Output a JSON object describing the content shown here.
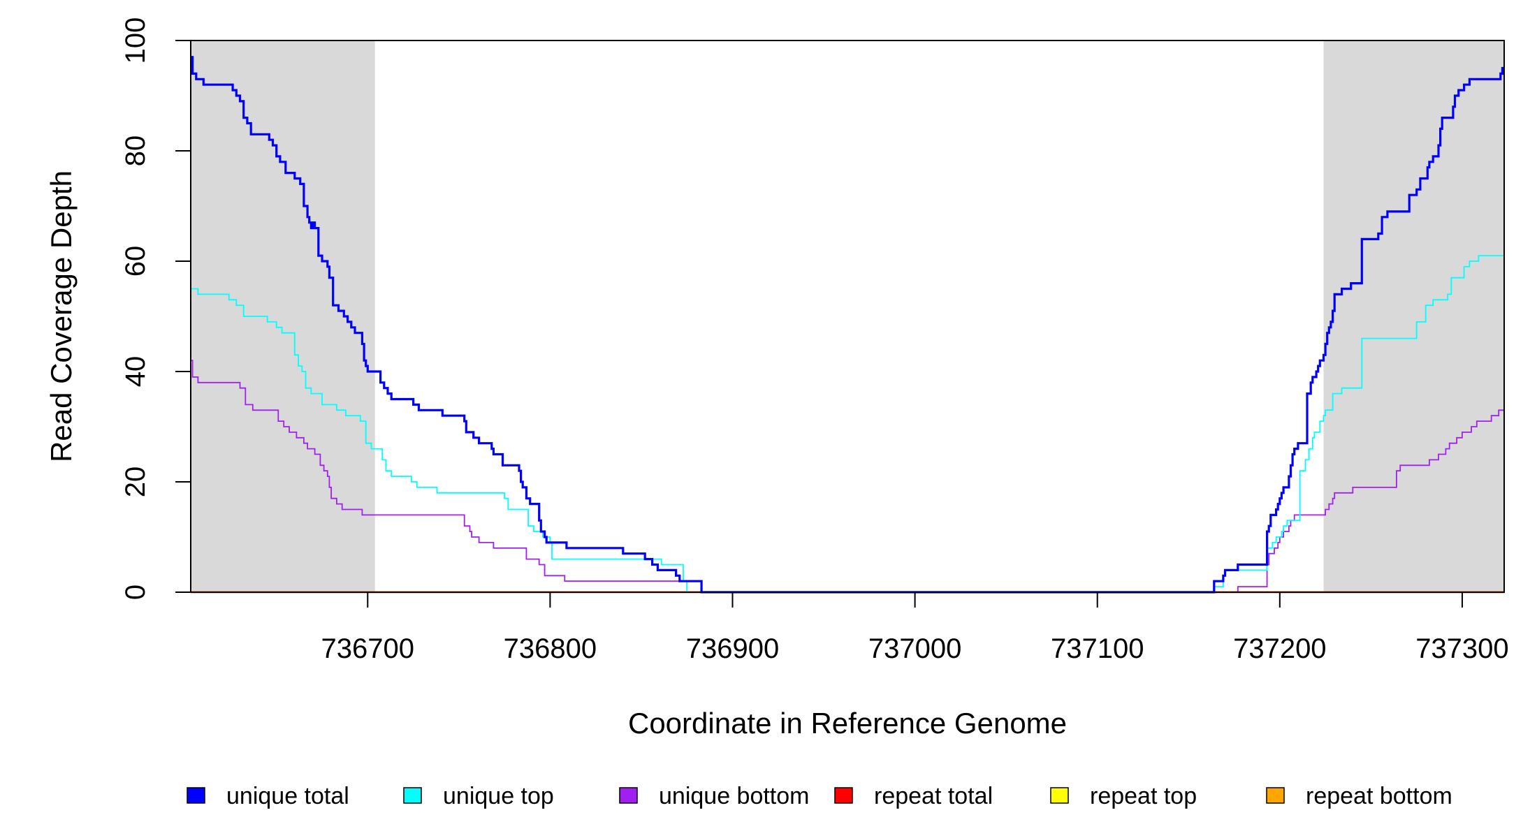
{
  "chart_data": {
    "type": "line",
    "xlabel": "Coordinate in Reference Genome",
    "ylabel": "Read Coverage Depth",
    "xlim": [
      736603,
      737323
    ],
    "ylim": [
      0,
      100
    ],
    "x_ticks": [
      736700,
      736800,
      736900,
      737000,
      737100,
      737200,
      737300
    ],
    "y_ticks": [
      0,
      20,
      40,
      60,
      80,
      100
    ],
    "grid": false,
    "legend_position": "bottom",
    "shaded_regions": [
      {
        "from": 736603,
        "to": 736704,
        "color": "#d9d9d9"
      },
      {
        "from": 737224,
        "to": 737323,
        "color": "#d9d9d9"
      }
    ],
    "series": [
      {
        "name": "unique total",
        "color": "#0000ff",
        "points": [
          [
            736603,
            97
          ],
          [
            736604,
            94
          ],
          [
            736606,
            93
          ],
          [
            736610,
            92
          ],
          [
            736626,
            91
          ],
          [
            736628,
            90
          ],
          [
            736630,
            89
          ],
          [
            736632,
            86
          ],
          [
            736634,
            85
          ],
          [
            736636,
            83
          ],
          [
            736646,
            82
          ],
          [
            736648,
            81
          ],
          [
            736650,
            79
          ],
          [
            736652,
            78
          ],
          [
            736655,
            76
          ],
          [
            736660,
            75
          ],
          [
            736663,
            74
          ],
          [
            736665,
            70
          ],
          [
            736667,
            68
          ],
          [
            736668,
            67
          ],
          [
            736669,
            66
          ],
          [
            736670,
            67
          ],
          [
            736671,
            66
          ],
          [
            736673,
            61
          ],
          [
            736675,
            60
          ],
          [
            736678,
            59
          ],
          [
            736679,
            57
          ],
          [
            736681,
            52
          ],
          [
            736684,
            51
          ],
          [
            736687,
            50
          ],
          [
            736689,
            49
          ],
          [
            736691,
            48
          ],
          [
            736693,
            47
          ],
          [
            736697,
            45
          ],
          [
            736698,
            42
          ],
          [
            736699,
            41
          ],
          [
            736700,
            40
          ],
          [
            736707,
            38
          ],
          [
            736709,
            37
          ],
          [
            736711,
            36
          ],
          [
            736713,
            35
          ],
          [
            736725,
            34
          ],
          [
            736728,
            33
          ],
          [
            736741,
            32
          ],
          [
            736753,
            31
          ],
          [
            736754,
            29
          ],
          [
            736758,
            28
          ],
          [
            736761,
            27
          ],
          [
            736768,
            26
          ],
          [
            736769,
            25
          ],
          [
            736774,
            23
          ],
          [
            736783,
            22
          ],
          [
            736784,
            20
          ],
          [
            736785,
            19
          ],
          [
            736787,
            17
          ],
          [
            736789,
            16
          ],
          [
            736794,
            13
          ],
          [
            736795,
            11
          ],
          [
            736797,
            10
          ],
          [
            736798,
            9
          ],
          [
            736809,
            8
          ],
          [
            736840,
            7
          ],
          [
            736852,
            6
          ],
          [
            736856,
            5
          ],
          [
            736859,
            4
          ],
          [
            736869,
            3
          ],
          [
            736871,
            2
          ],
          [
            736883,
            0
          ],
          [
            737163,
            0
          ],
          [
            737164,
            2
          ],
          [
            737169,
            3
          ],
          [
            737170,
            4
          ],
          [
            737177,
            5
          ],
          [
            737193,
            11
          ],
          [
            737194,
            12
          ],
          [
            737195,
            14
          ],
          [
            737198,
            15
          ],
          [
            737199,
            16
          ],
          [
            737200,
            17
          ],
          [
            737201,
            18
          ],
          [
            737202,
            19
          ],
          [
            737205,
            21
          ],
          [
            737206,
            23
          ],
          [
            737207,
            25
          ],
          [
            737208,
            26
          ],
          [
            737210,
            27
          ],
          [
            737215,
            36
          ],
          [
            737217,
            38
          ],
          [
            737218,
            39
          ],
          [
            737220,
            40
          ],
          [
            737221,
            41
          ],
          [
            737222,
            42
          ],
          [
            737224,
            43
          ],
          [
            737225,
            45
          ],
          [
            737226,
            47
          ],
          [
            737227,
            48
          ],
          [
            737228,
            49
          ],
          [
            737229,
            51
          ],
          [
            737230,
            54
          ],
          [
            737234,
            55
          ],
          [
            737239,
            56
          ],
          [
            737245,
            64
          ],
          [
            737254,
            65
          ],
          [
            737256,
            68
          ],
          [
            737259,
            69
          ],
          [
            737271,
            72
          ],
          [
            737275,
            73
          ],
          [
            737277,
            75
          ],
          [
            737281,
            77
          ],
          [
            737282,
            78
          ],
          [
            737284,
            79
          ],
          [
            737287,
            81
          ],
          [
            737288,
            84
          ],
          [
            737289,
            86
          ],
          [
            737295,
            88
          ],
          [
            737296,
            90
          ],
          [
            737298,
            91
          ],
          [
            737301,
            92
          ],
          [
            737304,
            93
          ],
          [
            737307,
            93
          ],
          [
            737308,
            93
          ],
          [
            737310,
            93
          ],
          [
            737311,
            93
          ],
          [
            737313,
            93
          ],
          [
            737315,
            93
          ],
          [
            737317,
            93
          ],
          [
            737319,
            93
          ],
          [
            737321,
            94
          ],
          [
            737322,
            95
          ],
          [
            737323,
            95
          ]
        ]
      },
      {
        "name": "unique top",
        "color": "#00ffff",
        "points": [
          [
            736603,
            55
          ],
          [
            736607,
            54
          ],
          [
            736624,
            53
          ],
          [
            736628,
            52
          ],
          [
            736632,
            50
          ],
          [
            736645,
            49
          ],
          [
            736650,
            48
          ],
          [
            736653,
            47
          ],
          [
            736660,
            43
          ],
          [
            736662,
            41
          ],
          [
            736664,
            40
          ],
          [
            736666,
            37
          ],
          [
            736669,
            36
          ],
          [
            736675,
            34
          ],
          [
            736683,
            33
          ],
          [
            736688,
            32
          ],
          [
            736696,
            31
          ],
          [
            736699,
            27
          ],
          [
            736702,
            26
          ],
          [
            736708,
            24
          ],
          [
            736710,
            22
          ],
          [
            736713,
            21
          ],
          [
            736724,
            20
          ],
          [
            736727,
            19
          ],
          [
            736738,
            18
          ],
          [
            736775,
            17
          ],
          [
            736777,
            15
          ],
          [
            736788,
            12
          ],
          [
            736791,
            11
          ],
          [
            736796,
            10
          ],
          [
            736800,
            9
          ],
          [
            736801,
            6
          ],
          [
            736861,
            5
          ],
          [
            736873,
            2
          ],
          [
            736875,
            0
          ],
          [
            737162,
            0
          ],
          [
            737164,
            1
          ],
          [
            737169,
            3
          ],
          [
            737170,
            4
          ],
          [
            737193,
            8
          ],
          [
            737196,
            9
          ],
          [
            737198,
            10
          ],
          [
            737201,
            11
          ],
          [
            737202,
            12
          ],
          [
            737204,
            13
          ],
          [
            737211,
            22
          ],
          [
            737214,
            24
          ],
          [
            737216,
            26
          ],
          [
            737218,
            28
          ],
          [
            737219,
            29
          ],
          [
            737222,
            31
          ],
          [
            737224,
            32
          ],
          [
            737225,
            33
          ],
          [
            737229,
            36
          ],
          [
            737234,
            37
          ],
          [
            737245,
            46
          ],
          [
            737255,
            46
          ],
          [
            737264,
            46
          ],
          [
            737275,
            49
          ],
          [
            737280,
            52
          ],
          [
            737284,
            53
          ],
          [
            737292,
            54
          ],
          [
            737294,
            57
          ],
          [
            737301,
            59
          ],
          [
            737304,
            60
          ],
          [
            737309,
            61
          ],
          [
            737323,
            61
          ]
        ]
      },
      {
        "name": "unique bottom",
        "color": "#a020f0",
        "points": [
          [
            736603,
            42
          ],
          [
            736604,
            39
          ],
          [
            736607,
            38
          ],
          [
            736630,
            37
          ],
          [
            736633,
            34
          ],
          [
            736637,
            33
          ],
          [
            736651,
            31
          ],
          [
            736654,
            30
          ],
          [
            736657,
            29
          ],
          [
            736661,
            28
          ],
          [
            736665,
            27
          ],
          [
            736667,
            26
          ],
          [
            736671,
            25
          ],
          [
            736674,
            23
          ],
          [
            736676,
            22
          ],
          [
            736678,
            21
          ],
          [
            736679,
            19
          ],
          [
            736680,
            17
          ],
          [
            736683,
            16
          ],
          [
            736686,
            15
          ],
          [
            736697,
            14
          ],
          [
            736753,
            12
          ],
          [
            736756,
            11
          ],
          [
            736757,
            10
          ],
          [
            736761,
            9
          ],
          [
            736769,
            8
          ],
          [
            736787,
            6
          ],
          [
            736794,
            5
          ],
          [
            736797,
            3
          ],
          [
            736808,
            2
          ],
          [
            736883,
            0
          ],
          [
            737177,
            1
          ],
          [
            737193,
            5
          ],
          [
            737194,
            7
          ],
          [
            737197,
            8
          ],
          [
            737199,
            9
          ],
          [
            737200,
            10
          ],
          [
            737202,
            11
          ],
          [
            737205,
            12
          ],
          [
            737206,
            13
          ],
          [
            737208,
            14
          ],
          [
            737225,
            15
          ],
          [
            737227,
            16
          ],
          [
            737229,
            17
          ],
          [
            737230,
            18
          ],
          [
            737240,
            19
          ],
          [
            737264,
            22
          ],
          [
            737266,
            23
          ],
          [
            737282,
            24
          ],
          [
            737287,
            25
          ],
          [
            737291,
            26
          ],
          [
            737293,
            27
          ],
          [
            737297,
            28
          ],
          [
            737300,
            29
          ],
          [
            737305,
            30
          ],
          [
            737308,
            31
          ],
          [
            737316,
            32
          ],
          [
            737320,
            33
          ],
          [
            737323,
            33
          ]
        ]
      },
      {
        "name": "repeat total",
        "color": "#ff0000",
        "points": [
          [
            736603,
            0
          ],
          [
            737323,
            0
          ]
        ]
      },
      {
        "name": "repeat top",
        "color": "#ffff00",
        "points": [
          [
            736603,
            0
          ],
          [
            737323,
            0
          ]
        ]
      },
      {
        "name": "repeat bottom",
        "color": "#ffa500",
        "points": [
          [
            736603,
            0
          ],
          [
            737323,
            0
          ]
        ]
      }
    ]
  }
}
